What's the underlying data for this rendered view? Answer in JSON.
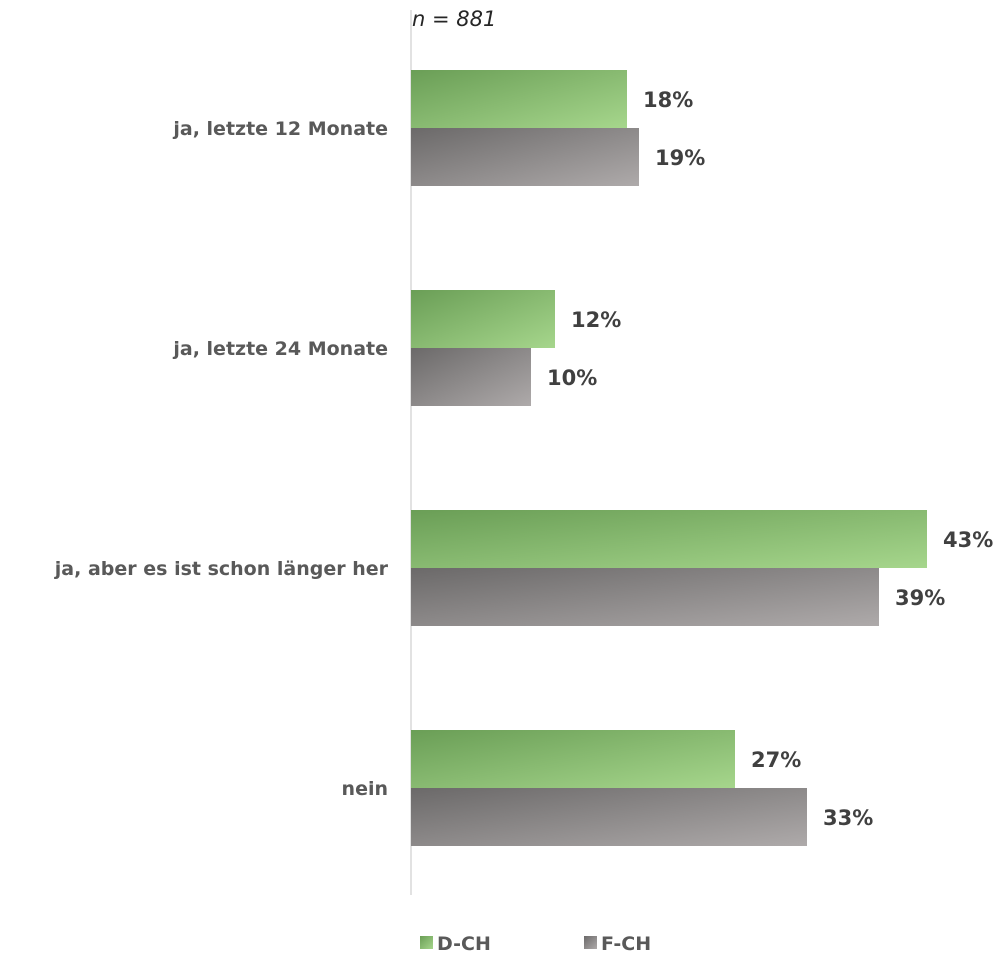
{
  "note": "n =  881",
  "chart_data": {
    "type": "bar",
    "orientation": "horizontal",
    "categories": [
      "ja, letzte 12 Monate",
      "ja, letzte 24 Monate",
      "ja, aber es ist schon länger her",
      "nein"
    ],
    "series": [
      {
        "name": "D-CH",
        "values": [
          18,
          12,
          43,
          27
        ],
        "labels": [
          "18%",
          "12%",
          "43%",
          "27%"
        ],
        "color": "#8fc47a"
      },
      {
        "name": "F-CH",
        "values": [
          19,
          10,
          39,
          33
        ],
        "labels": [
          "19%",
          "10%",
          "39%",
          "33%"
        ],
        "color": "#8a8888"
      }
    ],
    "xlim": [
      0,
      43
    ],
    "grid": false,
    "legend": "bottom"
  }
}
